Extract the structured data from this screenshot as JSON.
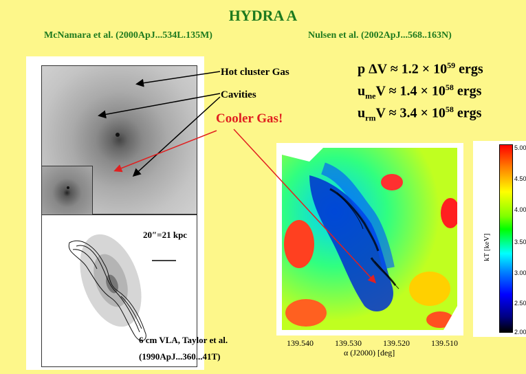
{
  "title": "HYDRA A",
  "refs": {
    "left": "McNamara et al. (2000ApJ...534L.135M)",
    "right": "Nulsen et al. (2002ApJ...568..163N)"
  },
  "equations": [
    {
      "lhs": "p ΔV ≈ 1.2 × 10",
      "sub": "",
      "exp": "59",
      "unit": " ergs"
    },
    {
      "lhs": "u",
      "sub": "me",
      "mid": "V ≈ 1.4 × 10",
      "exp": "58",
      "unit": " ergs"
    },
    {
      "lhs": "u",
      "sub": "rm",
      "mid": "V ≈ 3.4 × 10",
      "exp": "58",
      "unit": " ergs"
    }
  ],
  "labels": {
    "hot_gas": "Hot cluster Gas",
    "cavities": "Cavities",
    "cooler": "Cooler Gas!",
    "scale": "20″=21 kpc",
    "vla1": "6 cm VLA, Taylor et al.",
    "vla2": "(1990ApJ...360...41T)"
  },
  "temperature_map": {
    "colorbar_title": "kT [keV]",
    "colorbar_ticks": [
      "5.00",
      "4.50",
      "4.00",
      "3.50",
      "3.00",
      "2.50",
      "2.00"
    ],
    "x_ticks": [
      "139.540",
      "139.530",
      "139.520",
      "139.510"
    ],
    "x_label": "α (J2000) [deg]"
  },
  "colors": {
    "background": "#fdf78a",
    "green": "#1e7a1e",
    "red": "#e02020"
  }
}
